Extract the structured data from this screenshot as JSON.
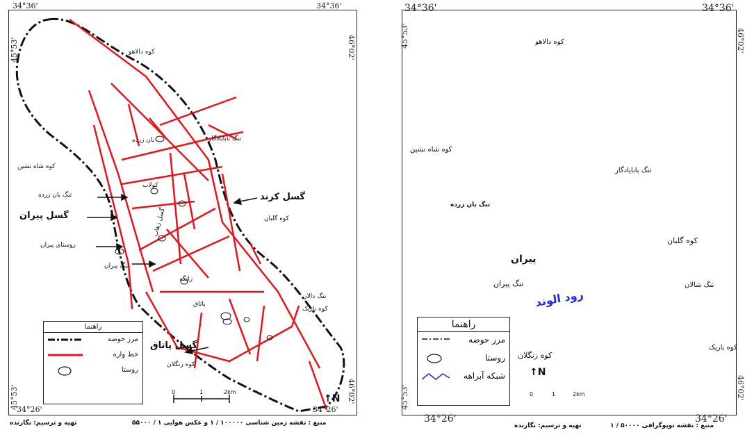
{
  "left_map": {
    "coords": {
      "top_left": "34°36'",
      "top_right": "34°36'",
      "left_top_lon": "45°53'",
      "right_top_lon": "46°02'",
      "left_bottom_lon": "45°53'",
      "right_bottom_lon": "46°02'",
      "bottom_left": "34°26'",
      "bottom_right": "34°26'"
    },
    "labels": {
      "kuh_dalahu": "کوه دالاهو",
      "kuh_shah_neshin": "کوه شاه نشین",
      "tang_ban_zarde": "تنگ بان زرده",
      "gosal_piran": "گسل پیران",
      "gosal_kerend": "گسل کرند",
      "gosal_pataq": "گسل پاتاق",
      "rusta_piran": "روستای پیران",
      "tang_piran": "تنگ پیران",
      "kuh_gelban": "کوه گلبان",
      "tang_babayadegar": "تنگ بابایادگار",
      "ban_zarde": "بان زرده",
      "tang_dalan": "تنگ دالان",
      "kuh_barik": "کوه باریک",
      "kuh_zangelan": "کوه زنگلان",
      "zanganeh": "زانگه",
      "pataq": "پاتاق",
      "gosal_zahab": "گسل زهاب",
      "kolab": "کولاب"
    },
    "legend": {
      "title": "راهنما",
      "items": [
        "مرز حوضه",
        "خط واره",
        "روستا"
      ]
    },
    "scale": {
      "zero": "0",
      "mid": "1",
      "end": "2km"
    },
    "north": "N",
    "source": "منبع : نقشه زمین شناسی ۱۰۰۰۰۰ / ۱ و عکس هوایی ۱ / ۵۵۰۰۰",
    "author": "تهیه و ترسیم: نگارنده"
  },
  "right_map": {
    "coords": {
      "top_left": "34°36'",
      "top_right": "34°36'",
      "left_top_lon": "45°53'",
      "right_top_lon": "46°02'",
      "left_bottom_lon": "45°53'",
      "right_bottom_lon": "46°02'",
      "bottom_left": "34°26'",
      "bottom_right": "34°26'"
    },
    "labels": {
      "kuh_dalahu": "کوه دالاهو",
      "kuh_shah_neshin": "کوه شاه نشین",
      "tang_ban_zarde": "تنگ بان زرده",
      "tang_babayadegar": "تنگ بابایادگار",
      "kuh_gelban": "کوه گلبان",
      "piran": "پیران",
      "tang_piran": "تنگ پیران",
      "rud_alvand": "رود الوند",
      "tang_shalan": "تنگ شالان",
      "kuh_barik": "کوه باریک",
      "kuh_zangelan": "کوه زنگلان"
    },
    "legend": {
      "title": "راهنما",
      "items": [
        "مرز حوضه",
        "روستا",
        "شبکه آبراهه"
      ]
    },
    "scale": {
      "zero": "0",
      "mid": "1",
      "end": "2km"
    },
    "north": "N",
    "source": "منبع : نقشه توپوگرافی ۵۰۰۰۰ / ۱",
    "author": "تهیه و ترسیم: نگارنده"
  },
  "colors": {
    "fault": "#e8131b",
    "stream": "#1f2bd6",
    "boundary": "#111111"
  }
}
